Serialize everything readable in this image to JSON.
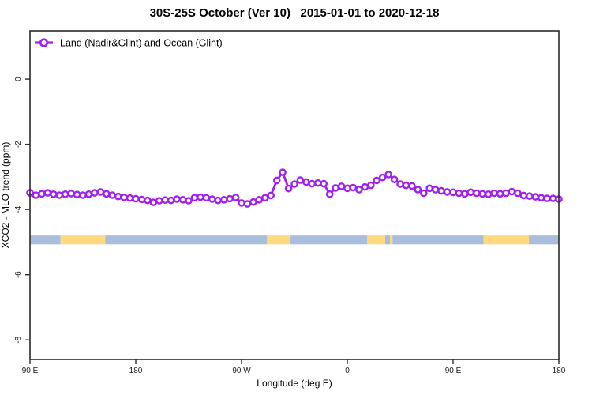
{
  "title": "30S-25S October (Ver 10)   2015-01-01 to 2020-12-18",
  "legend": {
    "items": [
      {
        "label": "Land (Nadir&Glint) and Ocean (Glint)",
        "color": "#a020f0",
        "marker": "open-circle"
      }
    ]
  },
  "colors": {
    "series": "#a020f0",
    "marker_fill": "#ffffff",
    "frame": "#2b2b2b",
    "band_ocean": "#a8bedc",
    "band_land": "#ffd97e"
  },
  "chart_data": {
    "type": "line",
    "title": "30S-25S October (Ver 10)   2015-01-01 to 2020-12-18",
    "xlabel": "Longitude (deg E)",
    "ylabel": "XCO2 - MLO trend (ppm)",
    "grid": false,
    "legend_position": "top-left-inside",
    "xlim": [
      90,
      540
    ],
    "ylim": [
      -8.6,
      1.48
    ],
    "x_ticks": [
      {
        "value": 90,
        "label": "90 E"
      },
      {
        "value": 180,
        "label": "180"
      },
      {
        "value": 270,
        "label": "90 W"
      },
      {
        "value": 360,
        "label": "0"
      },
      {
        "value": 450,
        "label": "90 E"
      },
      {
        "value": 540,
        "label": "180"
      }
    ],
    "y_ticks": [
      {
        "value": 0,
        "label": "0"
      },
      {
        "value": -2,
        "label": "-2"
      },
      {
        "value": -4,
        "label": "-4"
      },
      {
        "value": -6,
        "label": "-6"
      },
      {
        "value": -8,
        "label": "-8"
      }
    ],
    "series": [
      {
        "name": "Land (Nadir&Glint) and Ocean (Glint)",
        "color": "#a020f0",
        "marker": "open-circle",
        "x": [
          90,
          95,
          100,
          105,
          110,
          115,
          120,
          125,
          130,
          135,
          140,
          145,
          150,
          155,
          160,
          165,
          170,
          175,
          180,
          185,
          190,
          195,
          200,
          205,
          210,
          215,
          220,
          225,
          230,
          235,
          240,
          245,
          250,
          255,
          260,
          265,
          270,
          275,
          280,
          285,
          290,
          295,
          300,
          305,
          310,
          315,
          320,
          325,
          330,
          335,
          340,
          345,
          350,
          355,
          360,
          365,
          370,
          375,
          380,
          385,
          390,
          395,
          400,
          405,
          410,
          415,
          420,
          425,
          430,
          435,
          440,
          445,
          450,
          455,
          460,
          465,
          470,
          475,
          480,
          485,
          490,
          495,
          500,
          505,
          510,
          515,
          520,
          525,
          530,
          535,
          540
        ],
        "y": [
          -3.49,
          -3.56,
          -3.52,
          -3.49,
          -3.53,
          -3.56,
          -3.53,
          -3.51,
          -3.54,
          -3.56,
          -3.53,
          -3.49,
          -3.46,
          -3.52,
          -3.56,
          -3.6,
          -3.63,
          -3.65,
          -3.67,
          -3.69,
          -3.72,
          -3.78,
          -3.73,
          -3.71,
          -3.72,
          -3.68,
          -3.7,
          -3.73,
          -3.64,
          -3.62,
          -3.64,
          -3.68,
          -3.72,
          -3.7,
          -3.67,
          -3.63,
          -3.8,
          -3.83,
          -3.77,
          -3.7,
          -3.64,
          -3.57,
          -3.11,
          -2.86,
          -3.36,
          -3.22,
          -3.1,
          -3.16,
          -3.21,
          -3.19,
          -3.21,
          -3.53,
          -3.34,
          -3.29,
          -3.35,
          -3.33,
          -3.39,
          -3.31,
          -3.26,
          -3.11,
          -3.02,
          -2.93,
          -3.08,
          -3.22,
          -3.26,
          -3.28,
          -3.39,
          -3.5,
          -3.35,
          -3.39,
          -3.43,
          -3.46,
          -3.47,
          -3.5,
          -3.52,
          -3.47,
          -3.5,
          -3.52,
          -3.53,
          -3.5,
          -3.52,
          -3.5,
          -3.45,
          -3.5,
          -3.57,
          -3.59,
          -3.61,
          -3.64,
          -3.66,
          -3.66,
          -3.68
        ]
      }
    ],
    "surface_band": {
      "description": "land/ocean indicator strip",
      "y_range": [
        -4.8,
        -5.07
      ],
      "segments": [
        {
          "from": 90,
          "to": 116,
          "type": "ocean"
        },
        {
          "from": 116,
          "to": 154,
          "type": "land"
        },
        {
          "from": 154,
          "to": 291.5,
          "type": "ocean"
        },
        {
          "from": 291.5,
          "to": 311,
          "type": "land"
        },
        {
          "from": 311,
          "to": 376.8,
          "type": "ocean"
        },
        {
          "from": 376.8,
          "to": 392.2,
          "type": "land"
        },
        {
          "from": 392.2,
          "to": 396.3,
          "type": "ocean"
        },
        {
          "from": 396.3,
          "to": 398.5,
          "type": "land"
        },
        {
          "from": 398.5,
          "to": 476,
          "type": "ocean"
        },
        {
          "from": 476,
          "to": 514.5,
          "type": "land"
        },
        {
          "from": 514.5,
          "to": 540,
          "type": "ocean"
        }
      ]
    }
  }
}
